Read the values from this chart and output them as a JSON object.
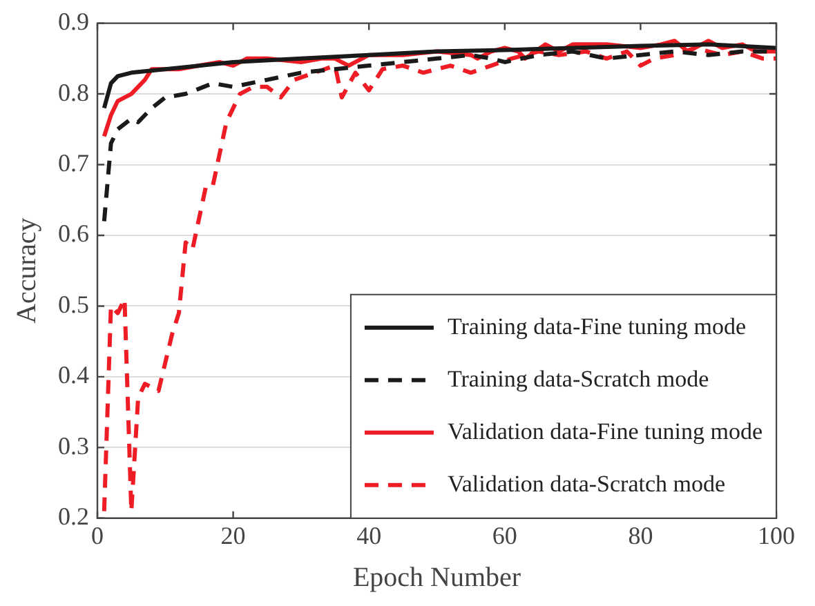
{
  "chart_data": {
    "type": "line",
    "xlabel": "Epoch Number",
    "ylabel": "Accuracy",
    "xlim": [
      0,
      100
    ],
    "xticks": [
      0,
      20,
      40,
      60,
      80,
      100
    ],
    "ylim": [
      0.2,
      0.9
    ],
    "yticks": [
      0.2,
      0.3,
      0.4,
      0.5,
      0.6,
      0.7,
      0.8,
      0.9
    ],
    "grid": "y",
    "legend": "bottom right",
    "marker": "none",
    "series": [
      {
        "name": "Training data-Fine tuning mode",
        "color": "#1a1a1a",
        "line_style": "solid",
        "x": [
          1,
          2,
          3,
          5,
          10,
          20,
          30,
          40,
          50,
          60,
          70,
          80,
          90,
          100
        ],
        "values": [
          0.78,
          0.815,
          0.825,
          0.83,
          0.835,
          0.845,
          0.85,
          0.855,
          0.86,
          0.862,
          0.865,
          0.868,
          0.87,
          0.865
        ]
      },
      {
        "name": "Training data-Scratch mode",
        "color": "#1a1a1a",
        "line_style": "dashed",
        "x": [
          1,
          2,
          3,
          5,
          6,
          8,
          10,
          13,
          17,
          20,
          25,
          30,
          35,
          40,
          45,
          50,
          55,
          58,
          60,
          65,
          70,
          75,
          80,
          85,
          90,
          95,
          100
        ],
        "values": [
          0.62,
          0.73,
          0.75,
          0.765,
          0.76,
          0.78,
          0.795,
          0.8,
          0.815,
          0.81,
          0.82,
          0.83,
          0.835,
          0.84,
          0.845,
          0.85,
          0.855,
          0.85,
          0.845,
          0.855,
          0.86,
          0.85,
          0.855,
          0.86,
          0.855,
          0.86,
          0.86
        ]
      },
      {
        "name": "Validation data-Fine tuning mode",
        "color": "#ee1c25",
        "line_style": "solid",
        "x": [
          1,
          2,
          3,
          5,
          7,
          8,
          10,
          12,
          15,
          18,
          20,
          22,
          25,
          30,
          33,
          35,
          37,
          40,
          45,
          50,
          55,
          56,
          58,
          60,
          62,
          63,
          66,
          68,
          70,
          75,
          80,
          83,
          85,
          87,
          90,
          92,
          95,
          97,
          100
        ],
        "values": [
          0.74,
          0.77,
          0.79,
          0.8,
          0.82,
          0.835,
          0.835,
          0.835,
          0.84,
          0.845,
          0.84,
          0.85,
          0.85,
          0.845,
          0.85,
          0.85,
          0.84,
          0.855,
          0.855,
          0.86,
          0.855,
          0.85,
          0.86,
          0.865,
          0.86,
          0.85,
          0.87,
          0.86,
          0.87,
          0.87,
          0.865,
          0.87,
          0.875,
          0.86,
          0.875,
          0.865,
          0.87,
          0.86,
          0.86
        ]
      },
      {
        "name": "Validation data-Scratch mode",
        "color": "#ee1c25",
        "line_style": "dashed",
        "x": [
          1,
          2,
          3,
          4,
          5,
          6,
          7,
          9,
          11,
          12,
          13,
          14,
          16,
          17,
          19,
          21,
          23,
          25,
          27,
          29,
          32,
          35,
          36,
          38,
          40,
          42,
          45,
          48,
          50,
          52,
          55,
          58,
          61,
          65,
          68,
          72,
          75,
          78,
          80,
          82,
          85,
          88,
          92,
          95,
          98,
          100
        ],
        "values": [
          0.21,
          0.5,
          0.49,
          0.51,
          0.21,
          0.37,
          0.39,
          0.38,
          0.46,
          0.49,
          0.59,
          0.58,
          0.67,
          0.67,
          0.76,
          0.8,
          0.81,
          0.81,
          0.795,
          0.82,
          0.83,
          0.84,
          0.795,
          0.83,
          0.805,
          0.835,
          0.84,
          0.83,
          0.835,
          0.84,
          0.83,
          0.84,
          0.85,
          0.86,
          0.855,
          0.86,
          0.85,
          0.86,
          0.84,
          0.85,
          0.855,
          0.865,
          0.855,
          0.86,
          0.85,
          0.85
        ]
      }
    ]
  }
}
